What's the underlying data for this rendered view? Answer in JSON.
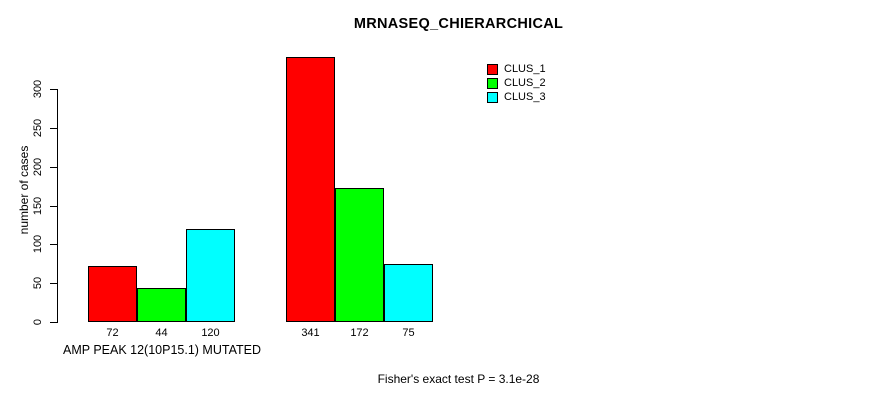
{
  "chart_data": {
    "type": "bar",
    "title": "MRNASEQ_CHIERARCHICAL",
    "ylabel": "number of cases",
    "xlabel": "AMP PEAK 12(10P15.1) MUTATED",
    "footnote": "Fisher's exact test P = 3.1e-28",
    "ylim": [
      0,
      300
    ],
    "yticks": [
      0,
      50,
      100,
      150,
      200,
      250,
      300
    ],
    "grid": false,
    "legend_position": "top-right",
    "series": [
      {
        "name": "CLUS_1",
        "color": "#ff0000"
      },
      {
        "name": "CLUS_2",
        "color": "#00ff00"
      },
      {
        "name": "CLUS_3",
        "color": "#00ffff"
      }
    ],
    "groups": [
      {
        "values": [
          72,
          44,
          120
        ],
        "bar_labels": [
          "72",
          "44",
          "120"
        ]
      },
      {
        "values": [
          341,
          172,
          75
        ],
        "bar_labels": [
          "341",
          "172",
          "75"
        ]
      }
    ]
  }
}
